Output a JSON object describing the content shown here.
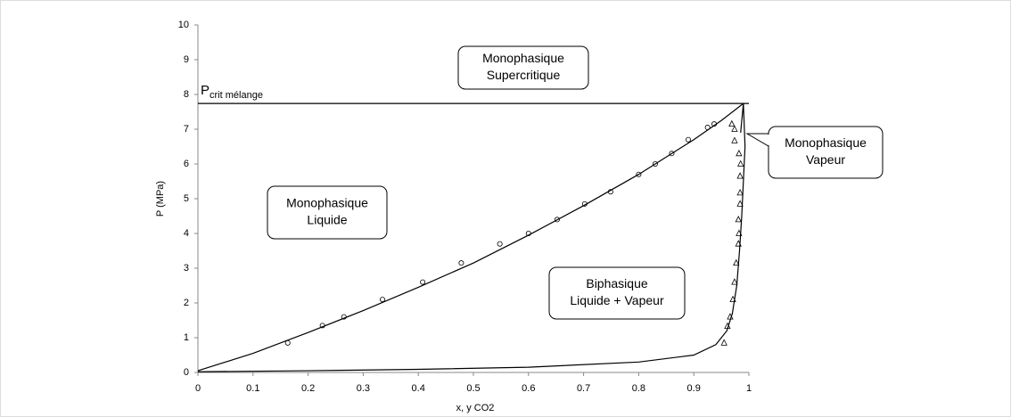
{
  "chart_data": {
    "type": "line",
    "xlabel": "x, y CO2",
    "ylabel": "P (MPa)",
    "xlim": [
      0,
      1
    ],
    "xticks": [
      0,
      0.1,
      0.2,
      0.3,
      0.4,
      0.5,
      0.6,
      0.7,
      0.8,
      0.9,
      1
    ],
    "ylim": [
      0,
      10
    ],
    "yticks": [
      0,
      1,
      2,
      3,
      4,
      5,
      6,
      7,
      8,
      9,
      10
    ],
    "color": "#000000",
    "pcrit": {
      "text": "P",
      "subscript": "crit mélange",
      "value": 7.74
    },
    "lines": [
      {
        "x": [
          0,
          0.1,
          0.2,
          0.3,
          0.4,
          0.5,
          0.6,
          0.7,
          0.8,
          0.9,
          0.95,
          0.99
        ],
        "values": [
          0.05,
          0.55,
          1.15,
          1.78,
          2.45,
          3.15,
          3.95,
          4.8,
          5.7,
          6.7,
          7.25,
          7.74
        ]
      },
      {
        "x": [
          0,
          0.2,
          0.4,
          0.6,
          0.8,
          0.9,
          0.94,
          0.96,
          0.97,
          0.978,
          0.983,
          0.987,
          0.99,
          0.993,
          0.99,
          0.985
        ],
        "values": [
          0.02,
          0.05,
          0.09,
          0.15,
          0.3,
          0.5,
          0.8,
          1.2,
          1.7,
          2.5,
          3.5,
          4.5,
          5.5,
          6.5,
          7.74,
          6.9
        ]
      }
    ],
    "scatter": [
      {
        "marker": "circle",
        "x": [
          0.163,
          0.226,
          0.265,
          0.335,
          0.408,
          0.478,
          0.548,
          0.6,
          0.652,
          0.702,
          0.749,
          0.8,
          0.83,
          0.86,
          0.89,
          0.925,
          0.937
        ],
        "values": [
          0.85,
          1.35,
          1.6,
          2.1,
          2.6,
          3.15,
          3.7,
          4.0,
          4.4,
          4.85,
          5.2,
          5.7,
          6.0,
          6.3,
          6.7,
          7.05,
          7.15
        ]
      },
      {
        "marker": "triangle",
        "x": [
          0.955,
          0.961,
          0.966,
          0.971,
          0.974,
          0.977,
          0.981,
          0.982,
          0.981,
          0.984,
          0.984,
          0.984,
          0.985,
          0.982,
          0.974,
          0.974,
          0.969
        ],
        "values": [
          0.85,
          1.33,
          1.6,
          2.1,
          2.6,
          3.15,
          3.7,
          4.0,
          4.4,
          4.85,
          5.17,
          5.65,
          6.0,
          6.3,
          6.67,
          7.0,
          7.15
        ]
      }
    ],
    "annotations": [
      {
        "lines": [
          "Monophasique",
          "Supercritique"
        ]
      },
      {
        "lines": [
          "Monophasique",
          "Liquide"
        ]
      },
      {
        "lines": [
          "Biphasique",
          "Liquide + Vapeur"
        ]
      },
      {
        "lines": [
          "Monophasique",
          "Vapeur"
        ]
      }
    ]
  }
}
